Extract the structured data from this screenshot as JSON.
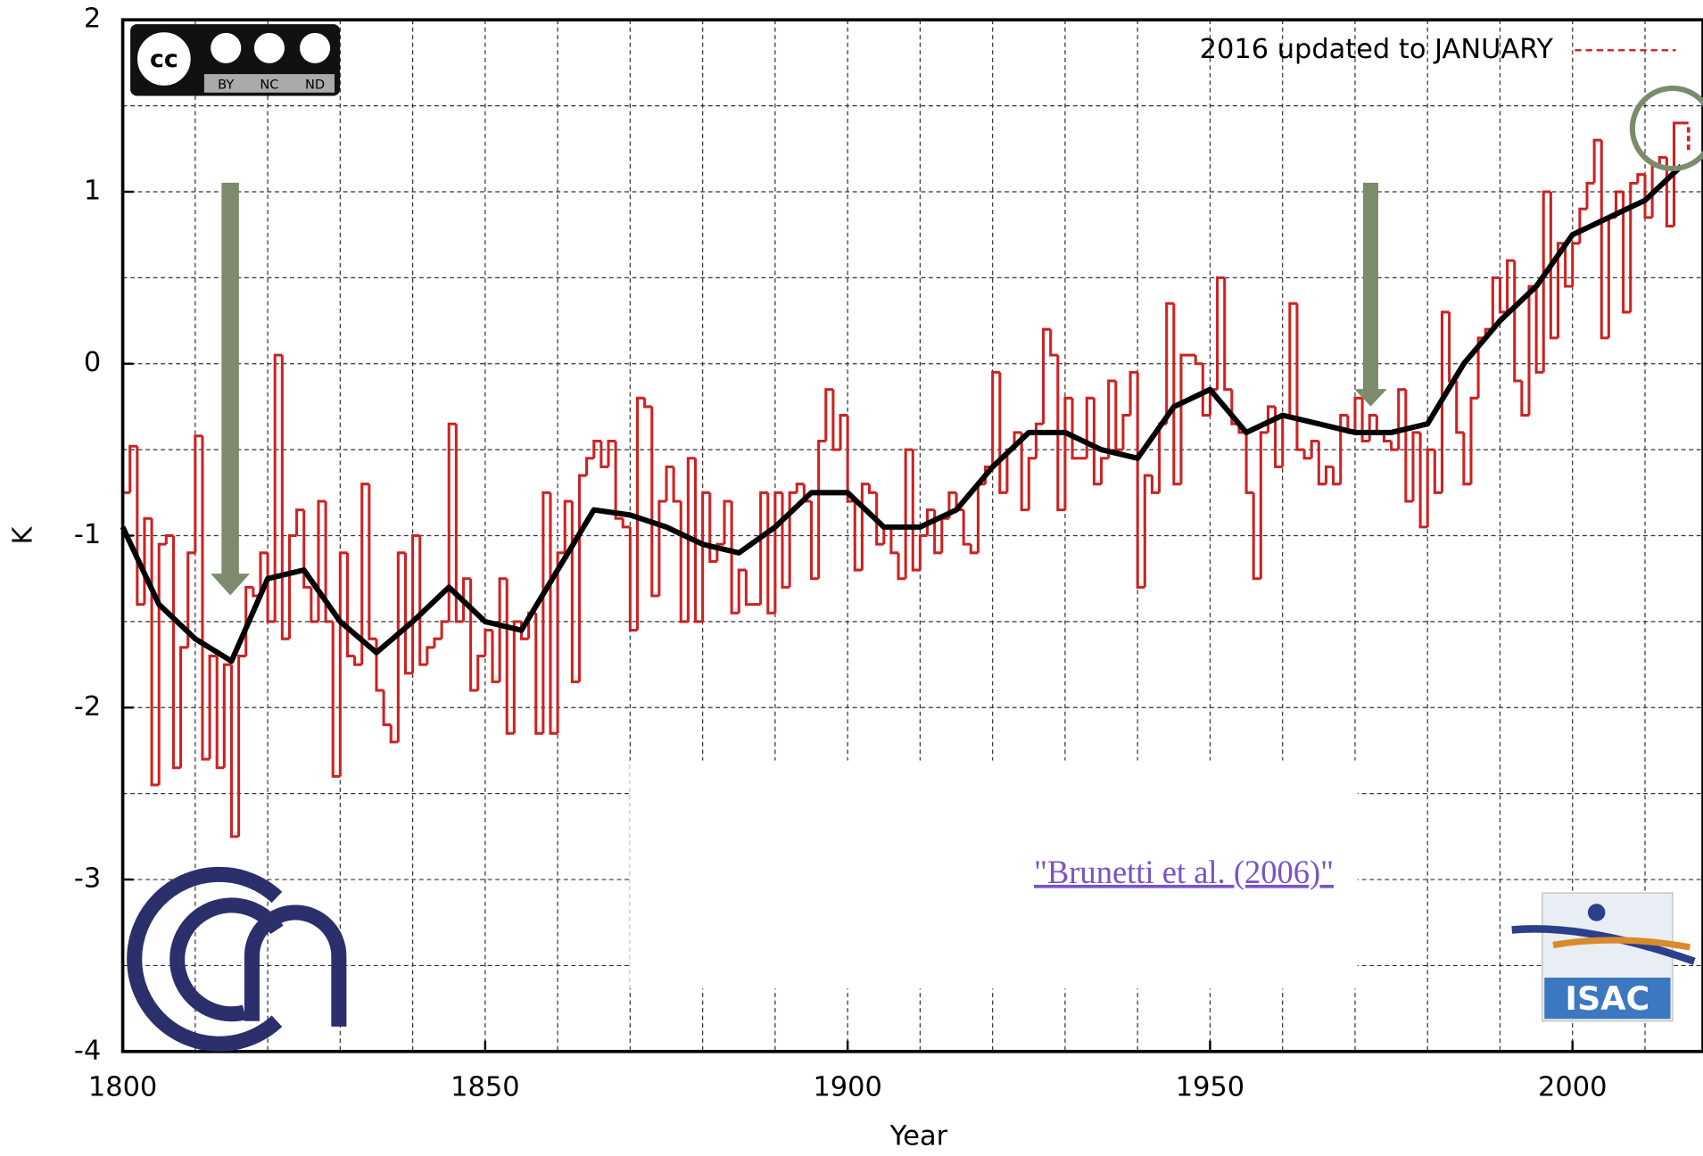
{
  "chart_data": {
    "type": "step",
    "x_label": "Year",
    "y_label": "K",
    "xlim": [
      1800,
      2018
    ],
    "ylim": [
      -4,
      2
    ],
    "xticks": [
      1800,
      1850,
      1900,
      1950,
      2000
    ],
    "yticks": [
      -4,
      -3,
      -2,
      -1,
      0,
      1,
      2
    ],
    "grid": true,
    "minor_grid": {
      "x": 10,
      "y": 0.5
    },
    "series": [
      {
        "name": "annual",
        "color": "#cc2222",
        "x": [
          1800,
          1801,
          1802,
          1803,
          1804,
          1805,
          1806,
          1807,
          1808,
          1809,
          1810,
          1811,
          1812,
          1813,
          1814,
          1815,
          1816,
          1817,
          1818,
          1819,
          1820,
          1821,
          1822,
          1823,
          1824,
          1825,
          1826,
          1827,
          1828,
          1829,
          1830,
          1831,
          1832,
          1833,
          1834,
          1835,
          1836,
          1837,
          1838,
          1839,
          1840,
          1841,
          1842,
          1843,
          1844,
          1845,
          1846,
          1847,
          1848,
          1849,
          1850,
          1851,
          1852,
          1853,
          1854,
          1855,
          1856,
          1857,
          1858,
          1859,
          1860,
          1861,
          1862,
          1863,
          1864,
          1865,
          1866,
          1867,
          1868,
          1869,
          1870,
          1871,
          1872,
          1873,
          1874,
          1875,
          1876,
          1877,
          1878,
          1879,
          1880,
          1881,
          1882,
          1883,
          1884,
          1885,
          1886,
          1887,
          1888,
          1889,
          1890,
          1891,
          1892,
          1893,
          1894,
          1895,
          1896,
          1897,
          1898,
          1899,
          1900,
          1901,
          1902,
          1903,
          1904,
          1905,
          1906,
          1907,
          1908,
          1909,
          1910,
          1911,
          1912,
          1913,
          1914,
          1915,
          1916,
          1917,
          1918,
          1919,
          1920,
          1921,
          1922,
          1923,
          1924,
          1925,
          1926,
          1927,
          1928,
          1929,
          1930,
          1931,
          1932,
          1933,
          1934,
          1935,
          1936,
          1937,
          1938,
          1939,
          1940,
          1941,
          1942,
          1943,
          1944,
          1945,
          1946,
          1947,
          1948,
          1949,
          1950,
          1951,
          1952,
          1953,
          1954,
          1955,
          1956,
          1957,
          1958,
          1959,
          1960,
          1961,
          1962,
          1963,
          1964,
          1965,
          1966,
          1967,
          1968,
          1969,
          1970,
          1971,
          1972,
          1973,
          1974,
          1975,
          1976,
          1977,
          1978,
          1979,
          1980,
          1981,
          1982,
          1983,
          1984,
          1985,
          1986,
          1987,
          1988,
          1989,
          1990,
          1991,
          1992,
          1993,
          1994,
          1995,
          1996,
          1997,
          1998,
          1999,
          2000,
          2001,
          2002,
          2003,
          2004,
          2005,
          2006,
          2007,
          2008,
          2009,
          2010,
          2011,
          2012,
          2013,
          2014,
          2015
        ],
        "values": [
          -0.75,
          -0.48,
          -1.4,
          -0.9,
          -2.45,
          -1.05,
          -1.0,
          -2.35,
          -1.65,
          -1.1,
          -0.42,
          -2.3,
          -1.7,
          -2.35,
          -1.75,
          -2.75,
          -1.7,
          -1.3,
          -1.35,
          -1.1,
          -1.5,
          0.05,
          -1.6,
          -1.0,
          -0.85,
          -1.3,
          -1.5,
          -0.8,
          -1.5,
          -2.4,
          -1.1,
          -1.7,
          -1.75,
          -0.7,
          -1.6,
          -1.9,
          -2.1,
          -2.2,
          -1.1,
          -1.8,
          -1.0,
          -1.75,
          -1.65,
          -1.6,
          -1.5,
          -0.35,
          -1.5,
          -1.25,
          -1.9,
          -1.7,
          -1.55,
          -1.85,
          -1.25,
          -2.15,
          -1.5,
          -1.6,
          -1.45,
          -2.15,
          -0.75,
          -2.15,
          -1.1,
          -0.8,
          -1.85,
          -0.65,
          -0.55,
          -0.45,
          -0.6,
          -0.45,
          -0.9,
          -0.95,
          -1.55,
          -0.2,
          -0.25,
          -1.35,
          -0.8,
          -0.6,
          -0.8,
          -1.5,
          -0.55,
          -1.5,
          -0.75,
          -1.15,
          -1.05,
          -0.8,
          -1.45,
          -1.2,
          -1.4,
          -1.4,
          -0.75,
          -1.45,
          -0.75,
          -1.3,
          -0.75,
          -0.7,
          -0.8,
          -1.25,
          -0.45,
          -0.15,
          -0.5,
          -0.3,
          -0.8,
          -1.2,
          -0.7,
          -0.75,
          -1.05,
          -0.95,
          -1.1,
          -1.25,
          -0.5,
          -1.2,
          -1.0,
          -0.85,
          -1.1,
          -0.9,
          -0.75,
          -0.85,
          -1.05,
          -1.1,
          -0.7,
          -0.6,
          -0.05,
          -0.75,
          -0.5,
          -0.4,
          -0.85,
          -0.55,
          -0.35,
          0.2,
          0.05,
          -0.85,
          -0.2,
          -0.55,
          -0.55,
          -0.2,
          -0.7,
          -0.55,
          -0.1,
          -0.5,
          -0.3,
          -0.05,
          -1.3,
          -0.65,
          -0.75,
          -0.35,
          0.35,
          -0.7,
          0.05,
          0.05,
          0.0,
          -0.3,
          -0.15,
          0.5,
          -0.15,
          -0.35,
          -0.4,
          -0.75,
          -1.25,
          -0.4,
          -0.25,
          -0.6,
          -0.3,
          0.35,
          -0.5,
          -0.55,
          -0.45,
          -0.7,
          -0.6,
          -0.7,
          -0.3,
          -0.4,
          -0.2,
          -0.45,
          -0.3,
          -0.4,
          -0.45,
          -0.5,
          -0.15,
          -0.8,
          -0.4,
          -0.95,
          -0.5,
          -0.75,
          0.3,
          -0.1,
          -0.4,
          -0.7,
          -0.2,
          0.15,
          0.2,
          0.5,
          0.3,
          0.6,
          -0.1,
          -0.3,
          0.45,
          -0.05,
          1.0,
          0.15,
          0.7,
          0.45,
          0.7,
          0.9,
          1.05,
          1.3,
          0.15,
          0.85,
          1.0,
          0.3,
          1.05,
          1.1,
          0.85,
          1.15,
          1.2,
          0.8,
          1.4,
          1.4
        ]
      },
      {
        "name": "smoothed",
        "color": "#000000",
        "x": [
          1800,
          1805,
          1810,
          1815,
          1820,
          1825,
          1830,
          1835,
          1840,
          1845,
          1850,
          1855,
          1860,
          1865,
          1870,
          1875,
          1880,
          1885,
          1890,
          1895,
          1900,
          1905,
          1910,
          1915,
          1920,
          1925,
          1930,
          1935,
          1940,
          1945,
          1950,
          1955,
          1960,
          1965,
          1970,
          1975,
          1980,
          1985,
          1990,
          1995,
          2000,
          2005,
          2010,
          2015
        ],
        "values": [
          -0.95,
          -1.4,
          -1.6,
          -1.73,
          -1.25,
          -1.2,
          -1.5,
          -1.68,
          -1.5,
          -1.3,
          -1.5,
          -1.55,
          -1.2,
          -0.85,
          -0.88,
          -0.95,
          -1.05,
          -1.1,
          -0.95,
          -0.75,
          -0.75,
          -0.95,
          -0.95,
          -0.85,
          -0.6,
          -0.4,
          -0.4,
          -0.5,
          -0.55,
          -0.25,
          -0.15,
          -0.4,
          -0.3,
          -0.35,
          -0.4,
          -0.4,
          -0.35,
          0.0,
          0.25,
          0.45,
          0.75,
          0.85,
          0.95,
          1.15
        ]
      },
      {
        "name": "2016 updated to JANUARY",
        "color": "#cc2222",
        "dashed": true,
        "x": [
          2016
        ],
        "values": [
          1.3
        ]
      }
    ],
    "link_text": "\"Brunetti et al. (2006)\"",
    "license_labels": [
      "BY",
      "NC",
      "ND"
    ],
    "logo_text": "ISAC"
  }
}
